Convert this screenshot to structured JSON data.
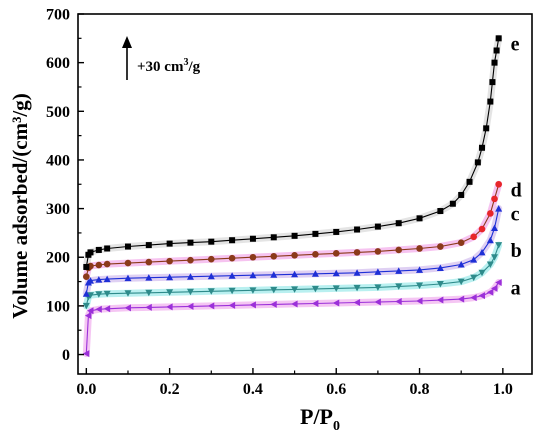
{
  "chart_data": {
    "type": "line",
    "xlabel": "P/P",
    "xlabel_sub": "0",
    "ylabel": "Volume adsorbed/(cm³/g)",
    "xlim": [
      -0.02,
      1.07
    ],
    "ylim": [
      -40,
      700
    ],
    "xticks": [
      0.0,
      0.2,
      0.4,
      0.6,
      0.8,
      1.0
    ],
    "xtick_labels": [
      "0.0",
      "0.2",
      "0.4",
      "0.6",
      "0.8",
      "1.0"
    ],
    "yticks": [
      0,
      100,
      200,
      300,
      400,
      500,
      600,
      700
    ],
    "ytick_labels": [
      "0",
      "100",
      "200",
      "300",
      "400",
      "500",
      "600",
      "700"
    ],
    "annotation": {
      "arrow": "up",
      "text_main": "+30 cm",
      "text_sup": "3",
      "text_tail": "/g"
    },
    "grid": false,
    "series": [
      {
        "name": "a",
        "color": "#9b30d9",
        "halo": "#f2b8f0",
        "marker": "triangle-left",
        "x": [
          0.0,
          0.005,
          0.01,
          0.03,
          0.05,
          0.1,
          0.15,
          0.2,
          0.25,
          0.3,
          0.35,
          0.4,
          0.45,
          0.5,
          0.55,
          0.6,
          0.65,
          0.7,
          0.75,
          0.8,
          0.85,
          0.9,
          0.93,
          0.95,
          0.97,
          0.98,
          0.99
        ],
        "y": [
          2,
          80,
          90,
          93,
          94,
          96,
          97,
          98,
          99,
          100,
          101,
          102,
          103,
          104,
          105,
          106,
          107,
          108,
          109,
          110,
          112,
          114,
          117,
          121,
          128,
          136,
          148
        ]
      },
      {
        "name": "b",
        "color": "#2e8b8b",
        "halo": "#a8ecec",
        "marker": "triangle-down",
        "x": [
          0.0,
          0.005,
          0.01,
          0.03,
          0.05,
          0.1,
          0.15,
          0.2,
          0.25,
          0.3,
          0.35,
          0.4,
          0.45,
          0.5,
          0.55,
          0.6,
          0.65,
          0.7,
          0.75,
          0.8,
          0.85,
          0.9,
          0.93,
          0.95,
          0.97,
          0.98,
          0.99
        ],
        "y": [
          100,
          118,
          122,
          124,
          125,
          126,
          127,
          128,
          129,
          130,
          131,
          132,
          133,
          134,
          135,
          136,
          137,
          138,
          140,
          142,
          145,
          150,
          158,
          168,
          185,
          200,
          225
        ]
      },
      {
        "name": "c",
        "color": "#1e2fd6",
        "halo": "#d7c4f0",
        "marker": "triangle-up",
        "x": [
          0.0,
          0.005,
          0.01,
          0.03,
          0.05,
          0.1,
          0.15,
          0.2,
          0.25,
          0.3,
          0.35,
          0.4,
          0.45,
          0.5,
          0.55,
          0.6,
          0.65,
          0.7,
          0.75,
          0.8,
          0.85,
          0.9,
          0.93,
          0.95,
          0.97,
          0.98,
          0.99
        ],
        "y": [
          125,
          148,
          152,
          154,
          155,
          157,
          158,
          159,
          160,
          161,
          162,
          163,
          164,
          165,
          166,
          167,
          168,
          170,
          172,
          174,
          178,
          185,
          195,
          210,
          235,
          260,
          300
        ]
      },
      {
        "name": "d",
        "color": "#8b3a1a",
        "halo": "#f4b4ec",
        "marker": "circle",
        "x": [
          0.0,
          0.005,
          0.01,
          0.03,
          0.05,
          0.1,
          0.15,
          0.2,
          0.25,
          0.3,
          0.35,
          0.4,
          0.45,
          0.5,
          0.55,
          0.6,
          0.65,
          0.7,
          0.75,
          0.8,
          0.85,
          0.9,
          0.93,
          0.95,
          0.97,
          0.98,
          0.99
        ],
        "y": [
          160,
          178,
          182,
          184,
          186,
          188,
          190,
          192,
          194,
          196,
          198,
          200,
          202,
          204,
          206,
          208,
          210,
          212,
          215,
          218,
          222,
          230,
          242,
          258,
          290,
          320,
          350
        ],
        "tail_color": "#e8262a"
      },
      {
        "name": "e",
        "color": "#000000",
        "halo": "#dddddd",
        "marker": "square",
        "x": [
          0.0,
          0.005,
          0.01,
          0.03,
          0.05,
          0.1,
          0.15,
          0.2,
          0.25,
          0.3,
          0.35,
          0.4,
          0.45,
          0.5,
          0.55,
          0.6,
          0.65,
          0.7,
          0.75,
          0.8,
          0.85,
          0.88,
          0.9,
          0.92,
          0.94,
          0.95,
          0.96,
          0.97,
          0.975,
          0.98,
          0.985,
          0.99
        ],
        "y": [
          180,
          205,
          210,
          215,
          218,
          222,
          225,
          228,
          230,
          232,
          235,
          238,
          241,
          244,
          248,
          252,
          257,
          263,
          270,
          280,
          295,
          310,
          328,
          355,
          395,
          425,
          465,
          520,
          560,
          600,
          625,
          650
        ]
      }
    ]
  }
}
